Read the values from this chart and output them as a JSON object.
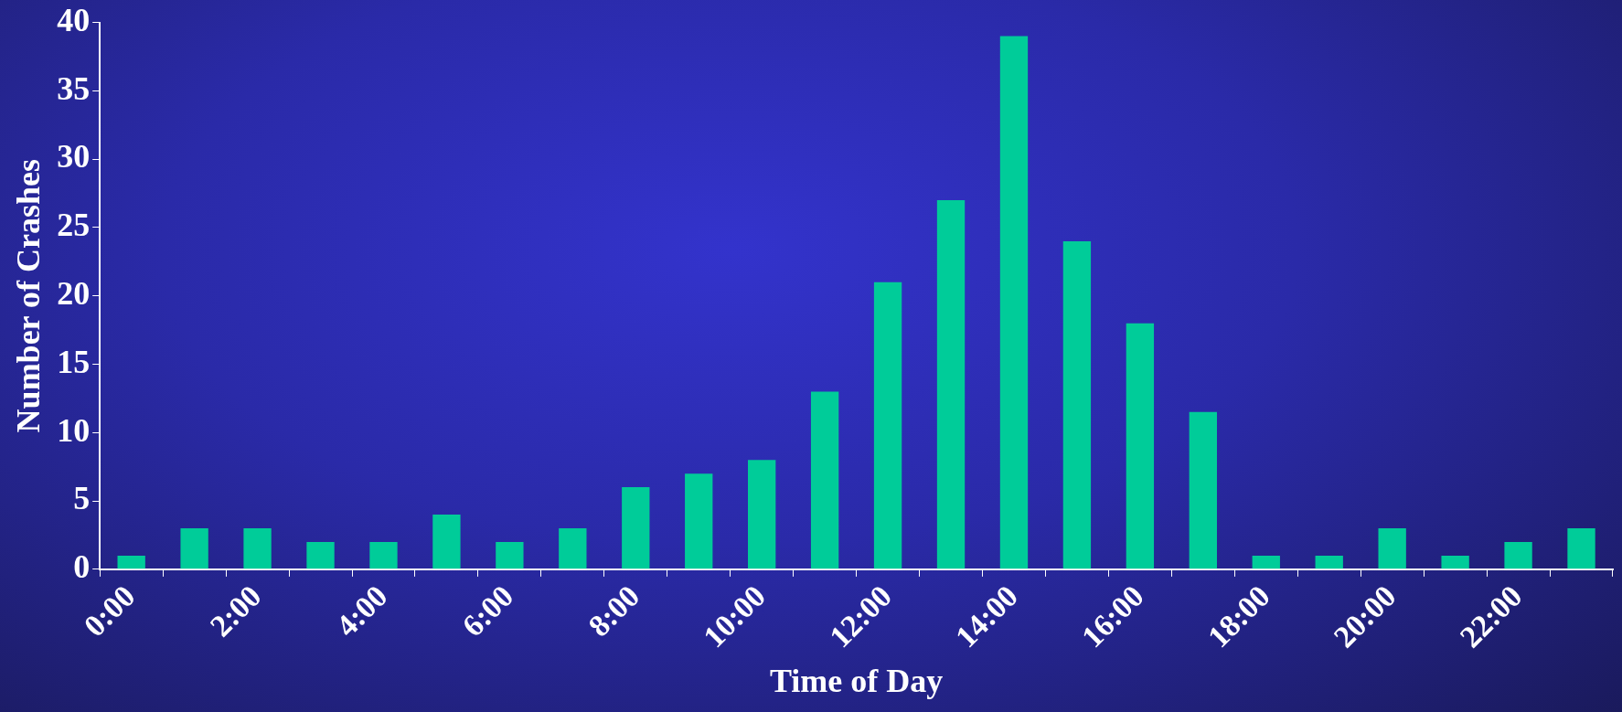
{
  "chart_data": {
    "type": "bar",
    "xlabel": "Time of Day",
    "ylabel": "Number of Crashes",
    "categories": [
      "0:00",
      null,
      "2:00",
      null,
      "4:00",
      null,
      "6:00",
      null,
      "8:00",
      null,
      "10:00",
      null,
      "12:00",
      null,
      "14:00",
      null,
      "16:00",
      null,
      "18:00",
      null,
      "20:00",
      null,
      "22:00",
      null
    ],
    "values": [
      1,
      3,
      3,
      2,
      2,
      4,
      2,
      3,
      6,
      7,
      8,
      13,
      21,
      27,
      39,
      24,
      18,
      11.5,
      1,
      1,
      3,
      1,
      2,
      3
    ],
    "color": "#00cc99",
    "ylim": [
      0,
      40
    ],
    "yticks": [
      0,
      5,
      10,
      15,
      20,
      25,
      30,
      35,
      40
    ],
    "grid": false,
    "legend": false
  }
}
